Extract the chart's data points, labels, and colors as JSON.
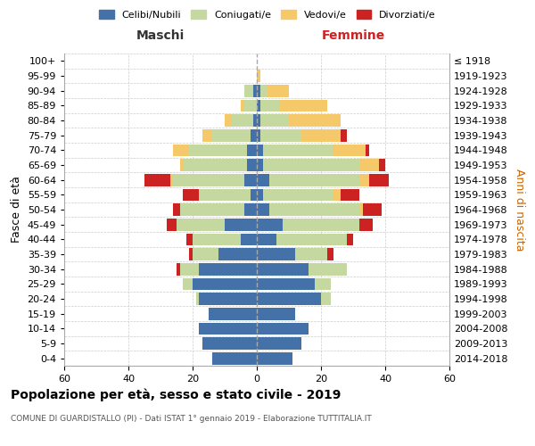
{
  "age_groups": [
    "0-4",
    "5-9",
    "10-14",
    "15-19",
    "20-24",
    "25-29",
    "30-34",
    "35-39",
    "40-44",
    "45-49",
    "50-54",
    "55-59",
    "60-64",
    "65-69",
    "70-74",
    "75-79",
    "80-84",
    "85-89",
    "90-94",
    "95-99",
    "100+"
  ],
  "birth_years": [
    "2014-2018",
    "2009-2013",
    "2004-2008",
    "1999-2003",
    "1994-1998",
    "1989-1993",
    "1984-1988",
    "1979-1983",
    "1974-1978",
    "1969-1973",
    "1964-1968",
    "1959-1963",
    "1954-1958",
    "1949-1953",
    "1944-1948",
    "1939-1943",
    "1934-1938",
    "1929-1933",
    "1924-1928",
    "1919-1923",
    "≤ 1918"
  ],
  "males": {
    "celibe": [
      14,
      17,
      18,
      15,
      18,
      20,
      18,
      12,
      5,
      10,
      4,
      2,
      4,
      3,
      3,
      2,
      1,
      0,
      1,
      0,
      0
    ],
    "coniugato": [
      0,
      0,
      0,
      0,
      1,
      3,
      6,
      8,
      15,
      15,
      20,
      16,
      22,
      20,
      18,
      12,
      7,
      4,
      3,
      0,
      0
    ],
    "vedovo": [
      0,
      0,
      0,
      0,
      0,
      0,
      0,
      0,
      0,
      0,
      0,
      0,
      1,
      1,
      5,
      3,
      2,
      1,
      0,
      0,
      0
    ],
    "divorziato": [
      0,
      0,
      0,
      0,
      0,
      0,
      1,
      1,
      2,
      3,
      2,
      5,
      8,
      0,
      0,
      0,
      0,
      0,
      0,
      0,
      0
    ]
  },
  "females": {
    "nubile": [
      11,
      14,
      16,
      12,
      20,
      18,
      16,
      12,
      6,
      8,
      4,
      2,
      4,
      2,
      2,
      1,
      1,
      1,
      1,
      0,
      0
    ],
    "coniugata": [
      0,
      0,
      0,
      0,
      3,
      5,
      12,
      10,
      22,
      24,
      28,
      22,
      28,
      30,
      22,
      13,
      9,
      6,
      2,
      0,
      0
    ],
    "vedova": [
      0,
      0,
      0,
      0,
      0,
      0,
      0,
      0,
      0,
      0,
      1,
      2,
      3,
      6,
      10,
      12,
      16,
      15,
      7,
      1,
      0
    ],
    "divorziata": [
      0,
      0,
      0,
      0,
      0,
      0,
      0,
      2,
      2,
      4,
      6,
      6,
      6,
      2,
      1,
      2,
      0,
      0,
      0,
      0,
      0
    ]
  },
  "colors": {
    "celibe": "#4472a8",
    "coniugato": "#c5d8a0",
    "vedovo": "#f5c96a",
    "divorziato": "#cc2222"
  },
  "xlim": 60,
  "title": "Popolazione per età, sesso e stato civile - 2019",
  "subtitle": "COMUNE DI GUARDISTALLO (PI) - Dati ISTAT 1° gennaio 2019 - Elaborazione TUTTITALIA.IT",
  "ylabel_left": "Fasce di età",
  "ylabel_right": "Anni di nascita",
  "legend_labels": [
    "Celibi/Nubili",
    "Coniugati/e",
    "Vedovi/e",
    "Divorziati/e"
  ],
  "maschi_label": "Maschi",
  "femmine_label": "Femmine",
  "maschi_color": "#333333",
  "femmine_color": "#cc2222"
}
